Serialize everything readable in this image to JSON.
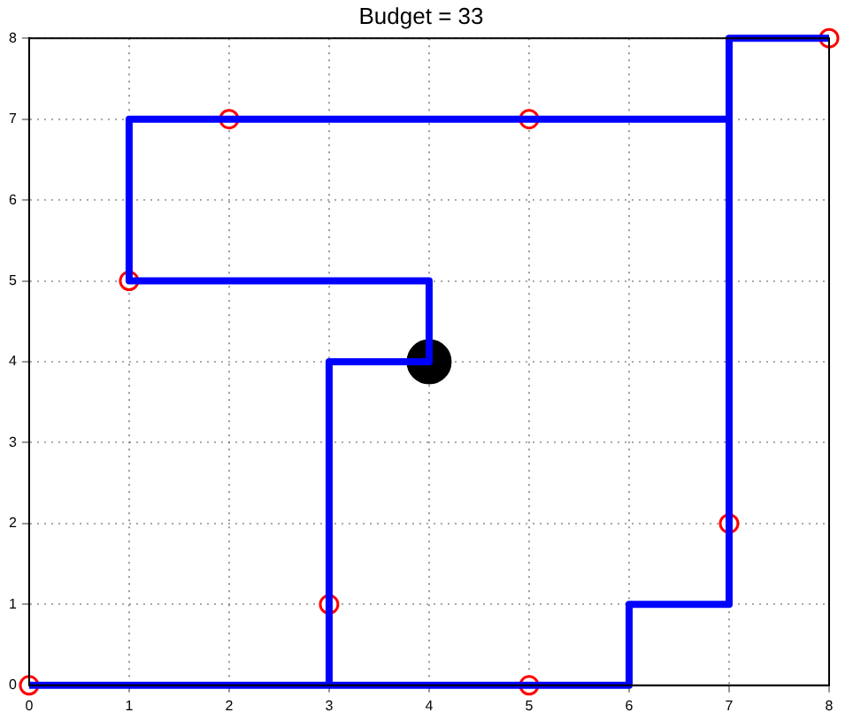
{
  "chart_data": {
    "type": "line",
    "title": "Budget = 33",
    "xlim": [
      0,
      8
    ],
    "ylim": [
      0,
      8
    ],
    "xticks": [
      0,
      1,
      2,
      3,
      4,
      5,
      6,
      7,
      8
    ],
    "yticks": [
      0,
      1,
      2,
      3,
      4,
      5,
      6,
      7,
      8
    ],
    "grid": true,
    "legend": false,
    "series": [
      {
        "type": "step",
        "color": "#0000ff",
        "marker": "none",
        "x": [
          8,
          7,
          7,
          6,
          6,
          0
        ],
        "values": [
          8,
          8,
          1,
          1,
          0,
          0
        ]
      },
      {
        "type": "step",
        "color": "#0000ff",
        "marker": "none",
        "x": [
          3,
          3,
          4,
          4,
          1,
          1,
          7
        ],
        "values": [
          0,
          4,
          4,
          5,
          5,
          7,
          7
        ]
      },
      {
        "type": "scatter",
        "color": "#ff0000",
        "marker": "circle",
        "x": [
          0,
          5,
          3,
          1,
          2,
          5,
          7,
          8
        ],
        "values": [
          0,
          0,
          1,
          5,
          7,
          7,
          2,
          8
        ]
      },
      {
        "type": "scatter",
        "color": "#000000",
        "marker": "circle",
        "x": [
          4
        ],
        "values": [
          4
        ]
      }
    ]
  }
}
